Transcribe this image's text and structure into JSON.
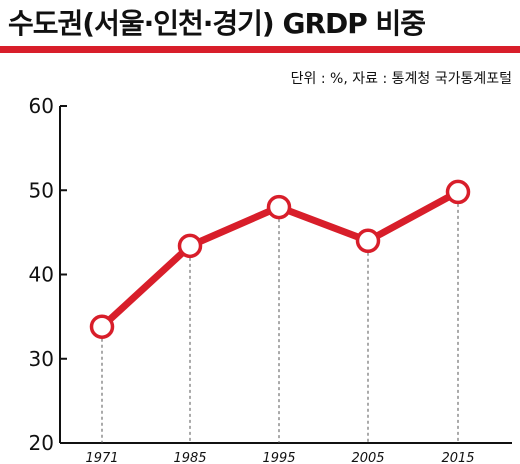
{
  "header": {
    "title": "수도권(서울·인천·경기) GRDP 비중",
    "source": "단위 : %, 자료 : 통계청 국가통계포털"
  },
  "colors": {
    "accent": "#d81e2a",
    "axis": "#111111",
    "guide": "#555555"
  },
  "chart_data": {
    "type": "line",
    "title": "수도권(서울·인천·경기) GRDP 비중",
    "categories": [
      "1971",
      "1985",
      "1995",
      "2005",
      "2015"
    ],
    "series": [
      {
        "values": [
          33.8,
          43.4,
          48.0,
          44.0,
          49.8
        ]
      }
    ],
    "yticks": [
      "20",
      "30",
      "40",
      "50",
      "60"
    ],
    "ylim": [
      20,
      60
    ],
    "grid": false
  }
}
